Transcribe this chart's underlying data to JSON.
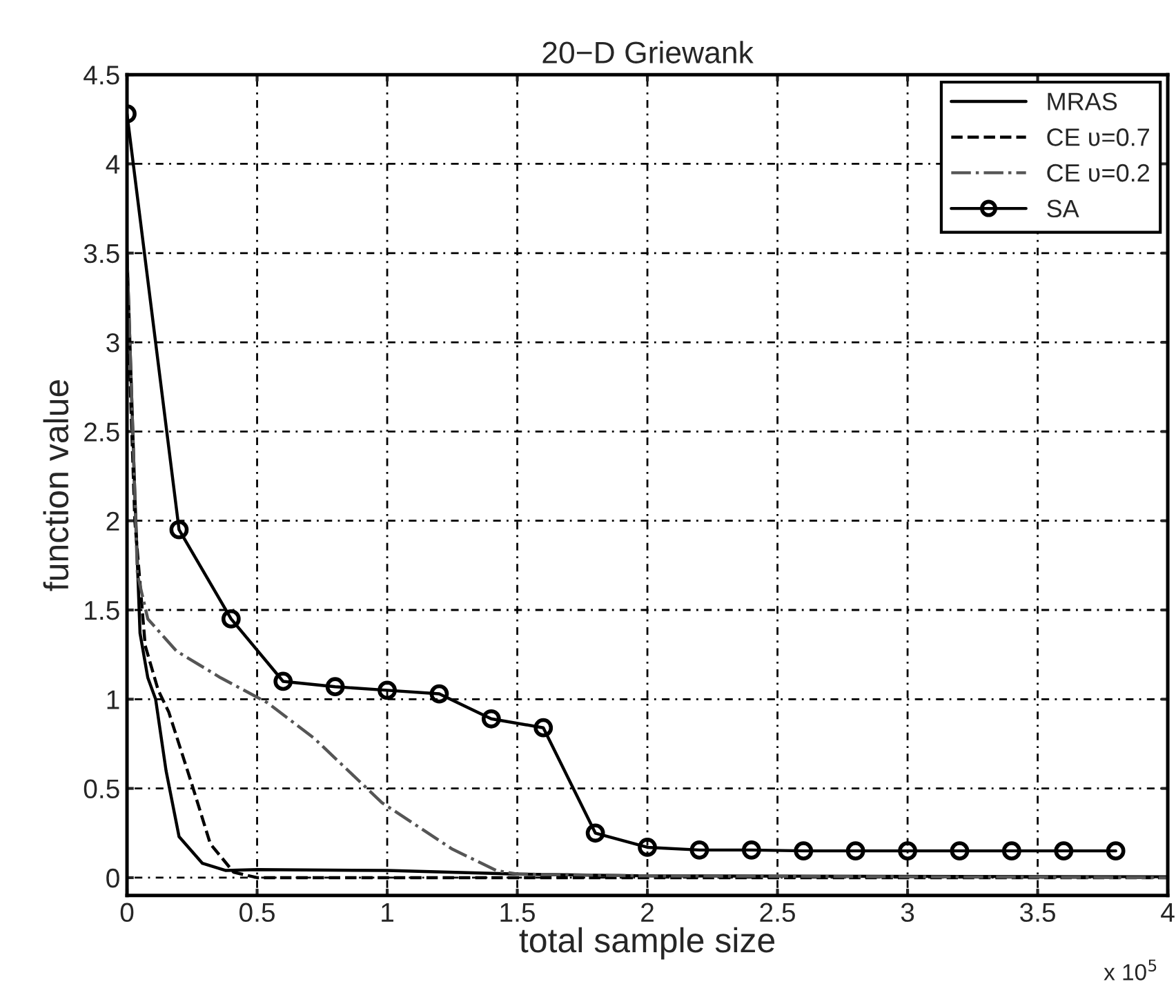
{
  "chart_data": {
    "type": "line",
    "title": "20−D Griewank",
    "xlabel": "total sample size",
    "ylabel": "function value",
    "annotations": [
      "x 10$^{5}$"
    ],
    "xlim": [
      0,
      4
    ],
    "xticks": [
      0,
      0.5,
      1,
      1.5,
      2,
      2.5,
      3,
      3.5,
      4
    ],
    "ylim": [
      -0.1,
      4.5
    ],
    "yticks": [
      0,
      0.5,
      1,
      1.5,
      2,
      2.5,
      3,
      3.5,
      4,
      4.5
    ],
    "grid": true,
    "legend": "top right",
    "series": [
      {
        "name": "MRAS",
        "color": "#000000",
        "line_style": "solid",
        "marker": "none",
        "x": [
          0,
          0.03,
          0.05,
          0.08,
          0.11,
          0.15,
          0.2,
          0.29,
          0.38,
          0.5,
          1.0,
          1.5,
          2.0,
          4.0
        ],
        "values": [
          3.5,
          2.15,
          1.37,
          1.12,
          1.0,
          0.6,
          0.23,
          0.08,
          0.04,
          0.045,
          0.04,
          0.02,
          0.01,
          0.005
        ]
      },
      {
        "name": "CE ʋ=0.7",
        "color": "#000000",
        "line_style": "dashed",
        "marker": "none",
        "x": [
          0,
          0.03,
          0.07,
          0.12,
          0.16,
          0.25,
          0.32,
          0.41,
          0.5,
          4.0
        ],
        "values": [
          3.3,
          2.0,
          1.3,
          1.05,
          0.93,
          0.52,
          0.19,
          0.03,
          0.0,
          0.0
        ]
      },
      {
        "name": "CE ʋ=0.2",
        "color": "#555555",
        "line_style": "dashdot",
        "marker": "none",
        "x": [
          0,
          0.04,
          0.08,
          0.19,
          0.36,
          0.54,
          0.72,
          0.98,
          1.25,
          1.42,
          1.5,
          2.0,
          4.0
        ],
        "values": [
          3.5,
          1.7,
          1.45,
          1.27,
          1.12,
          0.98,
          0.78,
          0.42,
          0.16,
          0.04,
          0.02,
          0.01,
          0.0
        ]
      },
      {
        "name": "SA",
        "color": "#000000",
        "line_style": "solid",
        "marker": "circle",
        "x": [
          0,
          0.2,
          0.4,
          0.6,
          0.8,
          1.0,
          1.2,
          1.4,
          1.6,
          1.8,
          2.0,
          2.2,
          2.4,
          2.6,
          2.8,
          3.0,
          3.2,
          3.4,
          3.6,
          3.8
        ],
        "values": [
          4.28,
          1.95,
          1.45,
          1.1,
          1.07,
          1.05,
          1.03,
          0.89,
          0.84,
          0.25,
          0.17,
          0.155,
          0.155,
          0.15,
          0.15,
          0.15,
          0.15,
          0.15,
          0.15,
          0.15
        ]
      }
    ]
  }
}
